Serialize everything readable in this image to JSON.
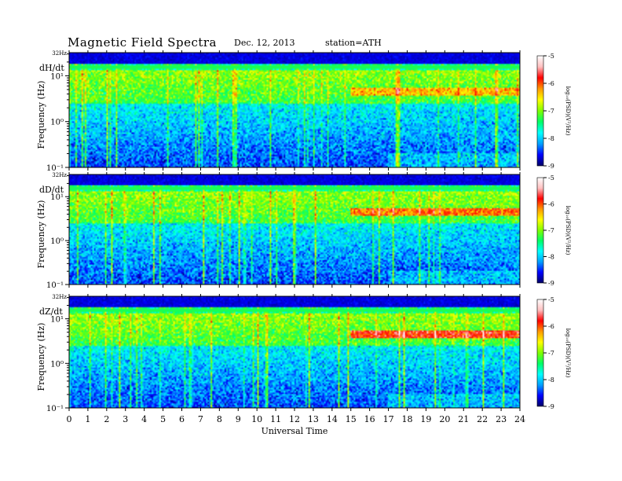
{
  "header": {
    "title": "Magnetic  Field  Spectra",
    "date": "Dec. 12, 2013",
    "station": "station=ATH"
  },
  "colors": {
    "colormap": [
      "#000066",
      "#0000ff",
      "#00a0ff",
      "#00ffff",
      "#00ff66",
      "#80ff00",
      "#ffff00",
      "#ff9900",
      "#ff0000",
      "#ffc0c0",
      "#ffffff"
    ],
    "background": "#ffffff"
  },
  "chart_data": [
    {
      "type": "heatmap",
      "component_label": "dH/dt",
      "ylabel": "Frequency  (Hz)",
      "top_label": "32Hz",
      "y_ticks": [
        "10¹",
        "10⁰",
        "10⁻¹"
      ],
      "y_tick_values": [
        10,
        1,
        0.1
      ],
      "ylim": [
        0.1,
        32
      ],
      "y_scale": "log",
      "xlim": [
        0,
        24
      ],
      "colorbar": {
        "label": "log₁₀(PSD)(V²/Hz)",
        "ticks": [
          "-5",
          "-6",
          "-7",
          "-8",
          "-9"
        ],
        "tick_values": [
          -5,
          -6,
          -7,
          -8,
          -9
        ],
        "range": [
          -9,
          -5
        ]
      }
    },
    {
      "type": "heatmap",
      "component_label": "dD/dt",
      "ylabel": "Frequency  (Hz)",
      "top_label": "32Hz",
      "y_ticks": [
        "10¹",
        "10⁰",
        "10⁻¹"
      ],
      "y_tick_values": [
        10,
        1,
        0.1
      ],
      "ylim": [
        0.1,
        32
      ],
      "y_scale": "log",
      "xlim": [
        0,
        24
      ],
      "colorbar": {
        "label": "log₁₀(PSD)(V²/Hz)",
        "ticks": [
          "-5",
          "-6",
          "-7",
          "-8",
          "-9"
        ],
        "tick_values": [
          -5,
          -6,
          -7,
          -8,
          -9
        ],
        "range": [
          -9,
          -5
        ]
      }
    },
    {
      "type": "heatmap",
      "component_label": "dZ/dt",
      "ylabel": "Frequency  (Hz)",
      "top_label": "32Hz",
      "y_ticks": [
        "10¹",
        "10⁰",
        "10⁻¹"
      ],
      "y_tick_values": [
        10,
        1,
        0.1
      ],
      "ylim": [
        0.1,
        32
      ],
      "y_scale": "log",
      "xlim": [
        0,
        24
      ],
      "colorbar": {
        "label": "log₁₀(PSD)(V²/Hz)",
        "ticks": [
          "-5",
          "-6",
          "-7",
          "-8",
          "-9"
        ],
        "tick_values": [
          -5,
          -6,
          -7,
          -8,
          -9
        ],
        "range": [
          -9,
          -5
        ]
      }
    }
  ],
  "x_axis": {
    "label": "Universal Time",
    "ticks": [
      "0",
      "1",
      "2",
      "3",
      "4",
      "5",
      "6",
      "7",
      "8",
      "9",
      "10",
      "11",
      "12",
      "13",
      "14",
      "15",
      "16",
      "17",
      "18",
      "19",
      "20",
      "21",
      "22",
      "23",
      "24"
    ]
  }
}
